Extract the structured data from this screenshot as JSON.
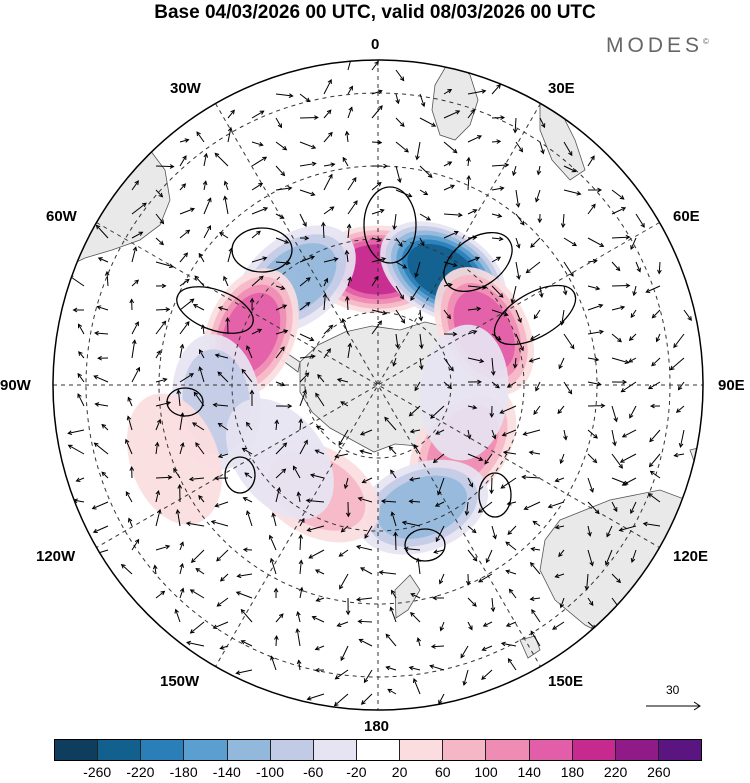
{
  "title": "Base 04/03/2026 00 UTC, valid 08/03/2026 00 UTC",
  "brand": "MODES",
  "brand_mark": "©",
  "longitude_labels": {
    "top": "0",
    "bottom": "180",
    "left": "90W",
    "right": "90E",
    "nw1": "30W",
    "ne1": "30E",
    "nw2": "60W",
    "ne2": "60E",
    "sw1": "120W",
    "se1": "120E",
    "sw2": "150W",
    "se2": "150E"
  },
  "reference_vector": {
    "value": "30"
  },
  "colorbar": {
    "colors": [
      "#0e3d5e",
      "#11608d",
      "#2b7fb8",
      "#5a9fcf",
      "#92b8dc",
      "#c2cbe6",
      "#e6e4f2",
      "#ffffff",
      "#fbdde0",
      "#f5b6c6",
      "#ef8cb3",
      "#e35ea9",
      "#c62a8f",
      "#901a87",
      "#5a1580"
    ],
    "ticks": [
      "-260",
      "-220",
      "-180",
      "-140",
      "-100",
      "-60",
      "-20",
      "20",
      "60",
      "100",
      "140",
      "180",
      "220",
      "260"
    ]
  },
  "anomalies": [
    {
      "lon": 0,
      "colat": 32,
      "value": 200
    },
    {
      "lon": 30,
      "colat": 36,
      "value": -240
    },
    {
      "lon": 63,
      "colat": 33,
      "value": 170
    },
    {
      "lon": -38,
      "colat": 37,
      "value": -150
    },
    {
      "lon": -68,
      "colat": 38,
      "value": 170
    },
    {
      "lon": -96,
      "colat": 45,
      "value": -110
    },
    {
      "lon": 126,
      "colat": 29,
      "value": 120
    },
    {
      "lon": 160,
      "colat": 36,
      "value": -140
    },
    {
      "lon": -150,
      "colat": 34,
      "value": 80
    },
    {
      "lon": -127,
      "colat": 34,
      "value": -70
    },
    {
      "lon": 95,
      "colat": 24,
      "value": -60
    },
    {
      "lon": -110,
      "colat": 60,
      "value": 40
    }
  ]
}
